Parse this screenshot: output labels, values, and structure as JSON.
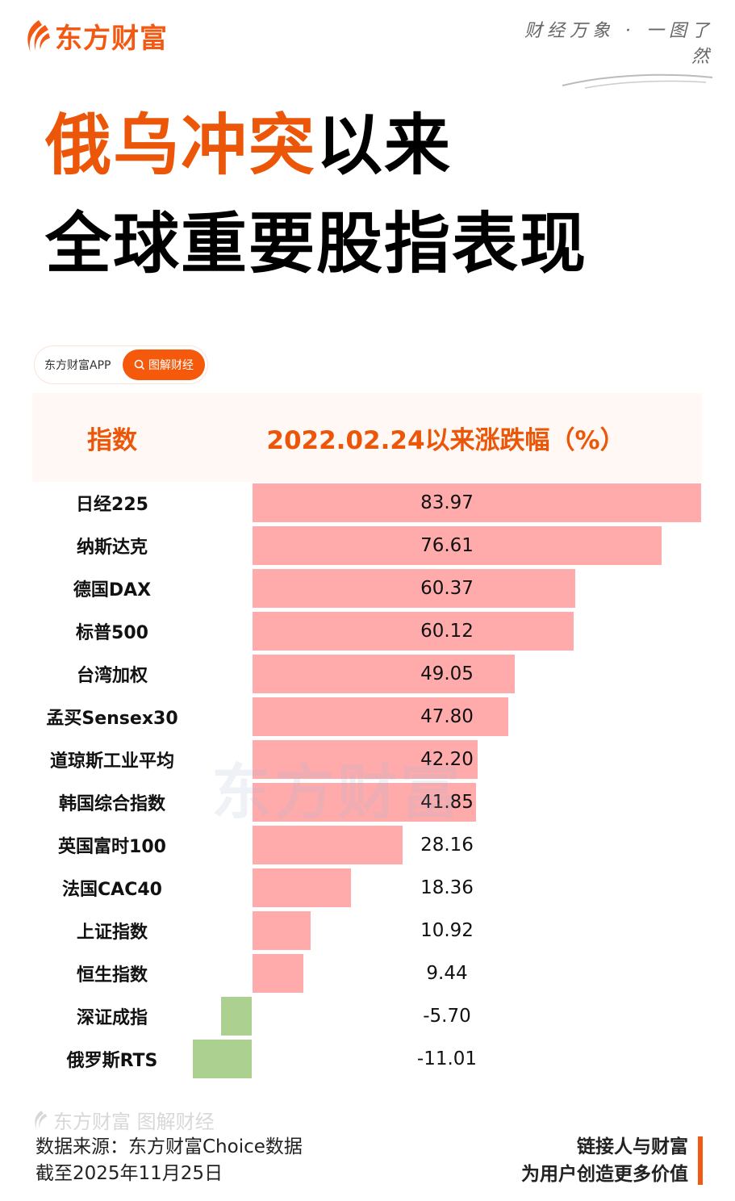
{
  "brand": {
    "logo_text": "东方财富",
    "slogan": "财经万象 · 一图了然",
    "accent_color": "#eb5608"
  },
  "title": {
    "line1_accent": "俄乌冲突",
    "line1_rest": "以来",
    "line2": "全球重要股指表现"
  },
  "pill": {
    "label": "东方财富APP",
    "button_label": "图解财经"
  },
  "table": {
    "header_name": "指数",
    "header_value": "2022.02.24以来涨跌幅（%）"
  },
  "colors": {
    "positive": "#ffabac",
    "negative": "#acd08f",
    "header_bg": "#fff8f5"
  },
  "chart_data": {
    "type": "bar",
    "orientation": "horizontal",
    "title": "俄乌冲突以来全球重要股指表现",
    "xlabel": "2022.02.24以来涨跌幅（%）",
    "ylabel": "指数",
    "categories": [
      "日经225",
      "纳斯达克",
      "德国DAX",
      "标普500",
      "台湾加权",
      "孟买Sensex30",
      "道琼斯工业平均",
      "韩国综合指数",
      "英国富时100",
      "法国CAC40",
      "上证指数",
      "恒生指数",
      "深证成指",
      "俄罗斯RTS"
    ],
    "values": [
      83.97,
      76.61,
      60.37,
      60.12,
      49.05,
      47.8,
      42.2,
      41.85,
      28.16,
      18.36,
      10.92,
      9.44,
      -5.7,
      -11.01
    ],
    "labels": [
      "83.97",
      "76.61",
      "60.37",
      "60.12",
      "49.05",
      "47.80",
      "42.20",
      "41.85",
      "28.16",
      "18.36",
      "10.92",
      "9.44",
      "-5.70",
      "-11.01"
    ],
    "grid": false,
    "legend": "none"
  },
  "footer": {
    "mark": "东方财富 图解财经",
    "source": "数据来源：东方财富Choice数据",
    "as_of": "截至2025年11月25日",
    "tagline1": "链接人与财富",
    "tagline2": "为用户创造更多价值"
  },
  "watermark": "东方财富"
}
